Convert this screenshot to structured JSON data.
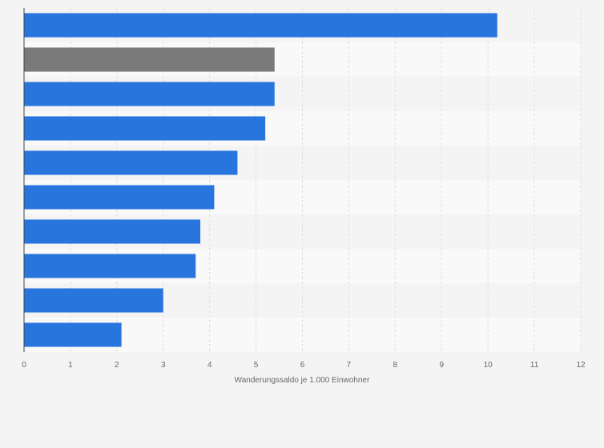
{
  "chart_data": {
    "type": "bar",
    "orientation": "horizontal",
    "title": "",
    "xlabel": "Wanderungssaldo je 1.000 Einwohner",
    "ylabel": "",
    "xlim": [
      0,
      12
    ],
    "x_ticks": [
      0,
      1,
      2,
      3,
      4,
      5,
      6,
      7,
      8,
      9,
      10,
      11,
      12
    ],
    "grid": true,
    "legend": "none",
    "categories": [
      "",
      "",
      "",
      "",
      "",
      "",
      "",
      "",
      "",
      ""
    ],
    "values": [
      10.2,
      5.4,
      5.4,
      5.2,
      4.6,
      4.1,
      3.8,
      3.7,
      3.0,
      2.1
    ],
    "bar_colors": [
      "#2876dd",
      "#7a7a7a",
      "#2876dd",
      "#2876dd",
      "#2876dd",
      "#2876dd",
      "#2876dd",
      "#2876dd",
      "#2876dd",
      "#2876dd"
    ]
  }
}
